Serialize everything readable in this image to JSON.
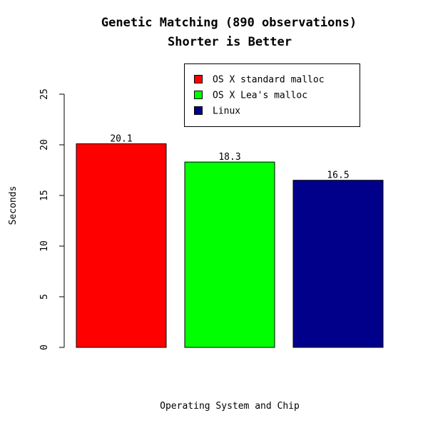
{
  "chart_data": {
    "type": "bar",
    "title": "Genetic Matching (890 observations)",
    "subtitle": "Shorter is Better",
    "xlabel": "Operating System and Chip",
    "ylabel": "Seconds",
    "categories": [
      "OS X standard malloc",
      "OS X Lea's malloc",
      "Linux"
    ],
    "values": [
      20.1,
      18.3,
      16.5
    ],
    "value_labels": [
      "20.1",
      "18.3",
      "16.5"
    ],
    "colors": [
      "#ff0000",
      "#00ff00",
      "#00008b"
    ],
    "ylim": [
      0,
      25
    ],
    "yticks": [
      0,
      5,
      10,
      15,
      20,
      25
    ],
    "ytick_labels": [
      "0",
      "5",
      "10",
      "15",
      "20",
      "25"
    ],
    "grid": false,
    "legend_position": "top-right",
    "legend": [
      {
        "label": "OS X standard malloc",
        "color": "#ff0000"
      },
      {
        "label": "OS X Lea's malloc",
        "color": "#00ff00"
      },
      {
        "label": "Linux",
        "color": "#00008b"
      }
    ]
  }
}
